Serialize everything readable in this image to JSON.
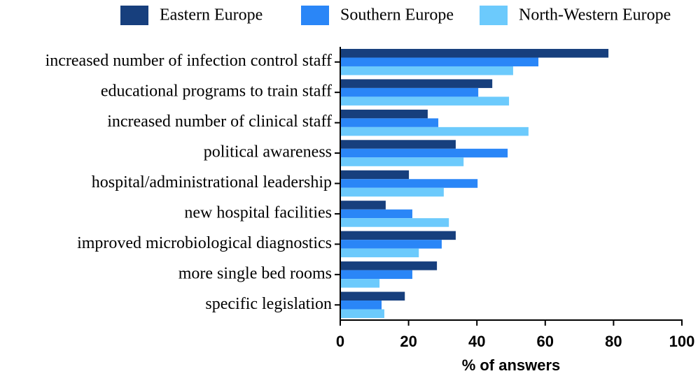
{
  "chart_data": {
    "type": "hbar",
    "orientation": "horizontal",
    "legend": "top",
    "categories": [
      "increased number of infection control staff",
      "educational programs to train staff",
      "increased number of clinical staff",
      "political awareness",
      "hospital/administrational leadership",
      "new hospital facilities",
      "improved microbiological diagnostics",
      "more single bed rooms",
      "specific legislation"
    ],
    "series": [
      {
        "name": "Eastern Europe",
        "color": "#173f7d",
        "values": [
          78.5,
          44.5,
          25.6,
          33.8,
          20.1,
          13.3,
          33.8,
          28.3,
          18.9
        ]
      },
      {
        "name": "Southern Europe",
        "color": "#2a86f7",
        "values": [
          58,
          40.4,
          28.7,
          49,
          40.2,
          21.1,
          29.7,
          21.1,
          12.1
        ]
      },
      {
        "name": "North-Western Europe",
        "color": "#6ccafc",
        "values": [
          50.6,
          49.4,
          55.1,
          36.1,
          30.3,
          31.8,
          23,
          11.5,
          12.9
        ]
      }
    ],
    "xlabel": "% of answers",
    "xlim": [
      0,
      100
    ],
    "xticks": [
      0,
      20,
      40,
      60,
      80,
      100
    ]
  }
}
